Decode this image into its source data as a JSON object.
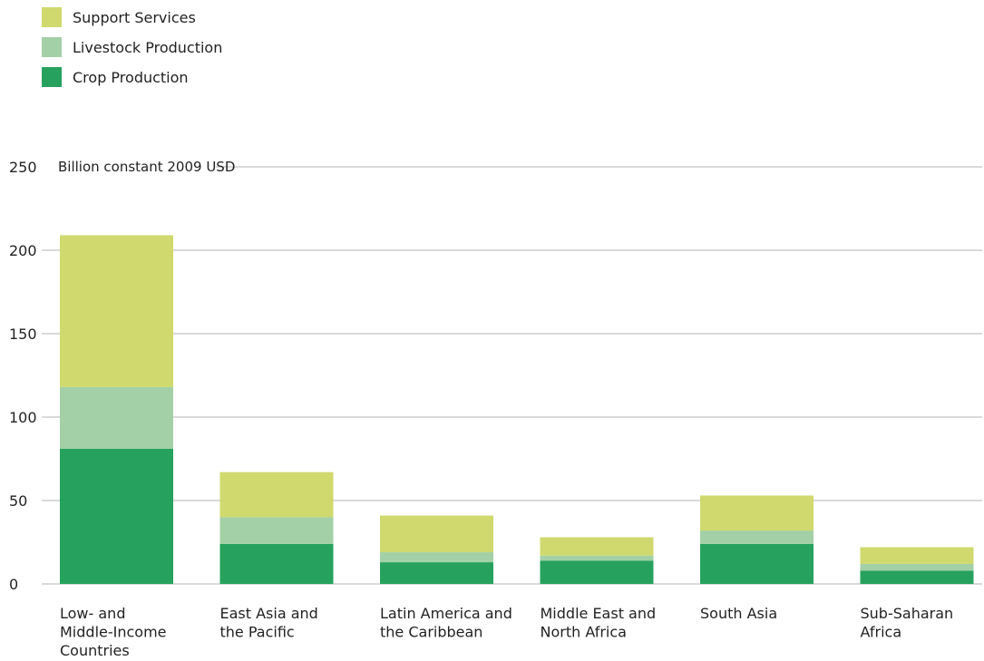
{
  "chart_data": {
    "type": "bar",
    "stacked": true,
    "unit_label": "Billion constant 2009 USD",
    "categories": [
      "Low- and\nMiddle-Income\nCountries",
      "East Asia and\nthe Pacific",
      "Latin America and\nthe Caribbean",
      "Middle East and\nNorth Africa",
      "South Asia",
      "Sub-Saharan\nAfrica"
    ],
    "series": [
      {
        "name": "Crop Production",
        "color": "#27a25e",
        "values": [
          81,
          24,
          13,
          14,
          24,
          8
        ]
      },
      {
        "name": "Livestock Production",
        "color": "#a3d0a6",
        "values": [
          37,
          16,
          6,
          3,
          8,
          4
        ]
      },
      {
        "name": "Support Services",
        "color": "#cfd96d",
        "values": [
          91,
          27,
          22,
          11,
          21,
          10
        ]
      }
    ],
    "yticks": [
      0,
      50,
      100,
      150,
      200,
      250
    ],
    "ylim": [
      0,
      250
    ],
    "grid": true,
    "legend_position": "top-left"
  }
}
